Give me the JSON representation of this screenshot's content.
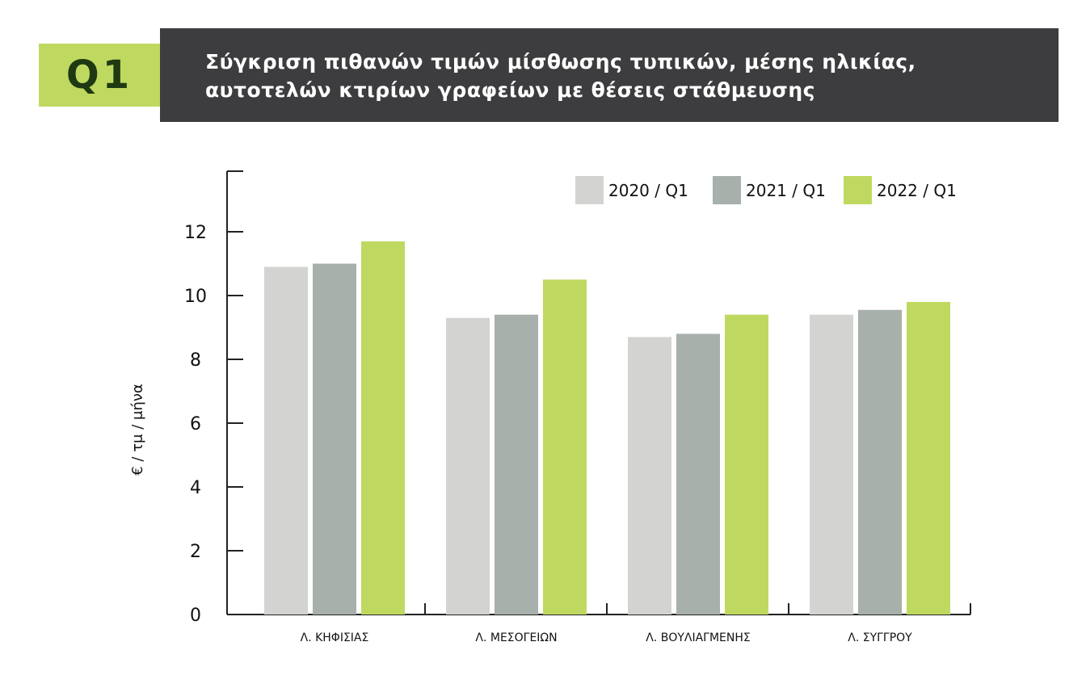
{
  "badge": {
    "label": "Q1"
  },
  "header": {
    "title_line1": "Σύγκριση πιθανών τιμών μίσθωσης τυπικών, μέσης ηλικίας,",
    "title_line2": "αυτοτελών κτιρίων γραφείων με  θέσεις στάθμευσης"
  },
  "colors": {
    "badge_bg": "#bfd960",
    "title_bg": "#3d3c3f",
    "series": [
      "#d3d4d2",
      "#a7b0aa",
      "#bfd960"
    ]
  },
  "chart_data": {
    "type": "bar",
    "categories": [
      "Λ. ΚΗΦΙΣΙΑΣ",
      "Λ. ΜΕΣΟΓΕΙΩΝ",
      "Λ. ΒΟΥΛΙΑΓΜΕΝΗΣ",
      "Λ. ΣΥΓΓΡΟΥ"
    ],
    "series": [
      {
        "name": "2020 / Q1",
        "values": [
          10.9,
          9.3,
          8.7,
          9.4
        ]
      },
      {
        "name": "2021 / Q1",
        "values": [
          11.0,
          9.4,
          8.8,
          9.55
        ]
      },
      {
        "name": "2022 / Q1",
        "values": [
          11.7,
          10.5,
          9.4,
          9.8
        ]
      }
    ],
    "ylabel": "€ / τμ / μήνα",
    "xlabel": "",
    "ylim": [
      0,
      14
    ],
    "yticks": [
      0,
      2,
      4,
      6,
      8,
      10,
      12
    ],
    "legend_position": "top-right",
    "grid": false
  }
}
